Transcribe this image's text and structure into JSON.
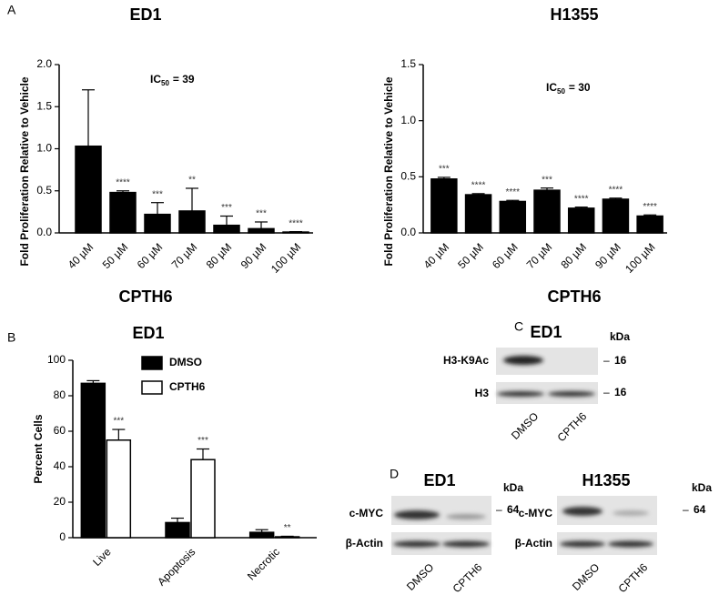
{
  "panel_letters": [
    "A",
    "B",
    "C",
    "D"
  ],
  "chart_data": [
    {
      "type": "bar",
      "title": "ED1",
      "x_label": "CPTH6",
      "y_label": "Fold Proliferation Relative to Vehicle",
      "categories": [
        "40 µM",
        "50 µM",
        "60 µM",
        "70 µM",
        "80 µM",
        "90 µM",
        "100 µM"
      ],
      "values": [
        1.03,
        0.48,
        0.22,
        0.26,
        0.09,
        0.05,
        0.01
      ],
      "errors": [
        0.67,
        0.02,
        0.14,
        0.27,
        0.11,
        0.08,
        0.005
      ],
      "significance": [
        null,
        "****",
        "***",
        "**",
        "***",
        "***",
        "****"
      ],
      "color": "#000000",
      "ylim": [
        0,
        2
      ],
      "yticks": [
        {
          "value": 0,
          "label": "0.0"
        },
        0.5,
        {
          "value": 1,
          "label": "1.0"
        },
        1.5,
        {
          "value": 2,
          "label": "2.0"
        }
      ],
      "grid": false,
      "annotation": {
        "base": "IC",
        "sub": "50",
        "text": "= 39"
      }
    },
    {
      "type": "bar",
      "title": "H1355",
      "x_label": "CPTH6",
      "y_label": "Fold Proliferation Relative to Vehicle",
      "categories": [
        "40 µM",
        "50 µM",
        "60 µM",
        "70 µM",
        "80 µM",
        "90 µM",
        "100 µM"
      ],
      "values": [
        0.48,
        0.34,
        0.28,
        0.38,
        0.22,
        0.3,
        0.15
      ],
      "errors": [
        0.015,
        0.01,
        0.01,
        0.02,
        0.01,
        0.01,
        0.01
      ],
      "significance": [
        "***",
        "****",
        "****",
        "***",
        "****",
        "****",
        "****"
      ],
      "color": "#000000",
      "ylim": [
        0,
        1.5
      ],
      "yticks": [
        {
          "value": 0,
          "label": "0.0"
        },
        0.5,
        {
          "value": 1,
          "label": "1.0"
        },
        1.5
      ],
      "grid": false,
      "annotation": {
        "base": "IC",
        "sub": "50",
        "text": "= 30"
      }
    },
    {
      "type": "grouped_bar",
      "title": "ED1",
      "y_label": "Percent Cells",
      "categories": [
        "Live",
        "Apoptosis",
        "Necrotic"
      ],
      "series": [
        {
          "name": "DMSO",
          "color": "#000000",
          "values": [
            87,
            8.5,
            3
          ],
          "errors": [
            1.5,
            2.5,
            1.5
          ],
          "significance": [
            null,
            null,
            null
          ]
        },
        {
          "name": "CPTH6",
          "color": "#ffffff",
          "values": [
            55,
            44,
            0.5
          ],
          "errors": [
            6,
            6,
            0.3
          ],
          "significance": [
            "***",
            "***",
            "**"
          ]
        }
      ],
      "ylim": [
        0,
        100
      ],
      "yticks": [
        0,
        20,
        40,
        60,
        80,
        100
      ],
      "grid": false,
      "legend": "top"
    }
  ],
  "blots": {
    "unit": "kDa",
    "lanes": [
      "DMSO",
      "CPTH6"
    ],
    "C": {
      "title": "ED1",
      "rows": [
        {
          "label": "H3-K9Ac",
          "marker": 16
        },
        {
          "label": "H3",
          "marker": 16
        }
      ]
    },
    "D_ed1": {
      "title": "ED1",
      "rows": [
        {
          "label": "c-MYC",
          "marker": 64
        },
        {
          "label": "β-Actin"
        }
      ]
    },
    "D_h1355": {
      "title": "H1355",
      "rows": [
        {
          "label": "c-MYC",
          "marker": 64
        },
        {
          "label": "β-Actin"
        }
      ]
    }
  }
}
